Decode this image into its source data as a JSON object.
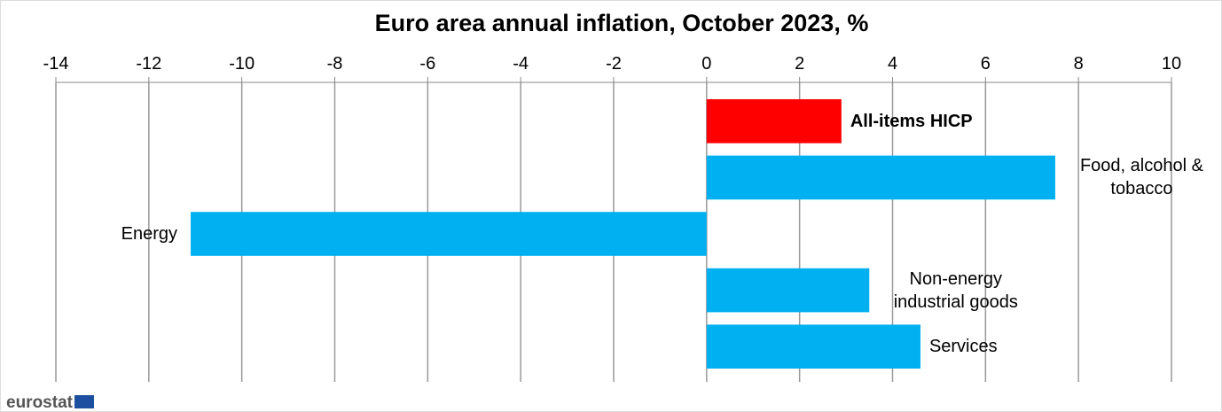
{
  "chart_data": {
    "type": "hbar",
    "title": "Euro area annual inflation, October 2023, %",
    "categories": [
      "All-items HICP",
      "Food, alcohol & tobacco",
      "Energy",
      "Non-energy industrial goods",
      "Services"
    ],
    "values": [
      2.9,
      7.5,
      -11.1,
      3.5,
      4.6
    ],
    "colors": [
      "#ff0000",
      "#00b0f0",
      "#00b0f0",
      "#00b0f0",
      "#00b0f0"
    ],
    "xlim": [
      -14,
      10
    ],
    "xticks": [
      -14,
      -12,
      -10,
      -8,
      -6,
      -4,
      -2,
      0,
      2,
      4,
      6,
      8,
      10
    ],
    "grid": true,
    "source": "eurostat"
  }
}
